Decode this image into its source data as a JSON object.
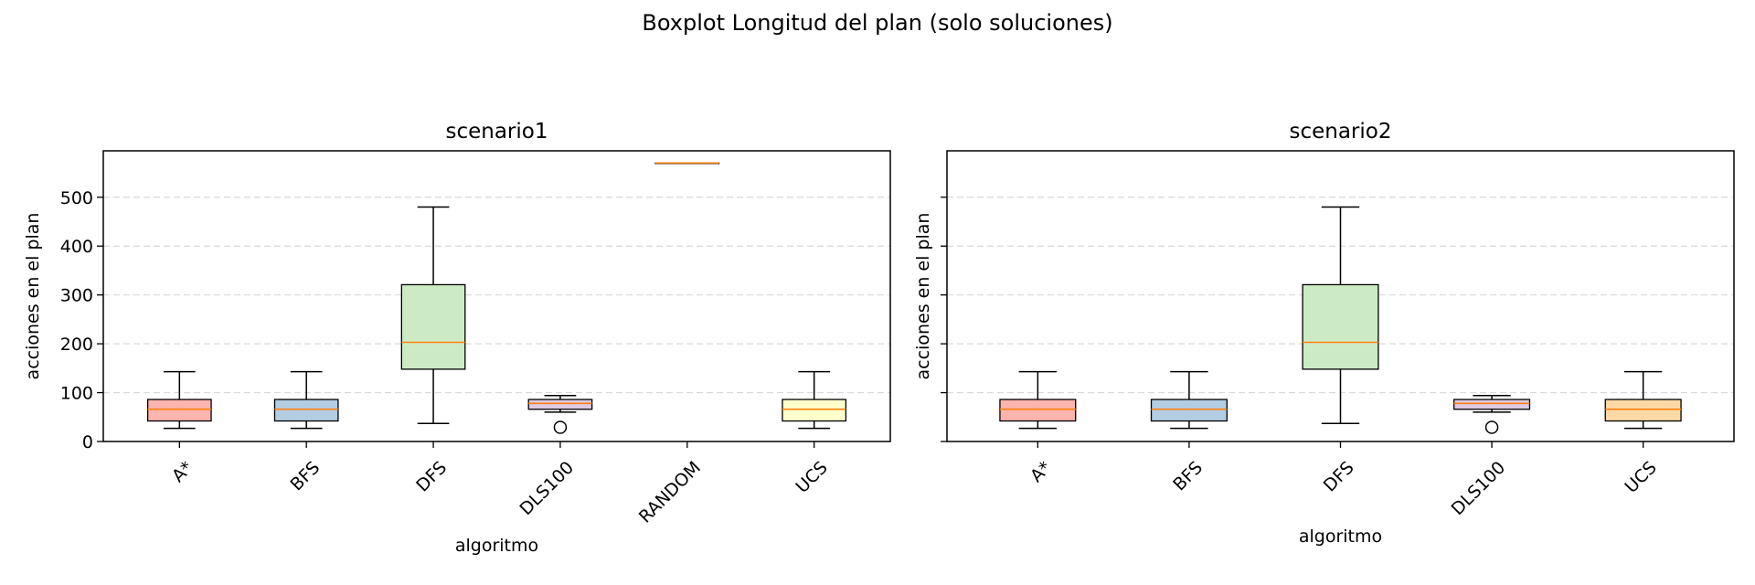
{
  "suptitle": "Boxplot Longitud del plan (solo soluciones)",
  "chart_data": [
    {
      "type": "boxplot",
      "title": "scenario1",
      "xlabel": "algoritmo",
      "ylabel": "acciones en el plan",
      "ylim": [
        0,
        595
      ],
      "yticks": [
        0,
        100,
        200,
        300,
        400,
        500
      ],
      "grid": "y-dashed",
      "categories": [
        "A*",
        "BFS",
        "DFS",
        "DLS100",
        "RANDOM",
        "UCS"
      ],
      "boxes": [
        {
          "name": "A*",
          "whislo": 27,
          "q1": 42,
          "med": 66,
          "q3": 86,
          "whishi": 143,
          "fliers": [],
          "color": "#fbb4ae"
        },
        {
          "name": "BFS",
          "whislo": 27,
          "q1": 42,
          "med": 66,
          "q3": 86,
          "whishi": 143,
          "fliers": [],
          "color": "#b3cde3"
        },
        {
          "name": "DFS",
          "whislo": 37,
          "q1": 148,
          "med": 203,
          "q3": 321,
          "whishi": 480,
          "fliers": [],
          "color": "#ccebc5"
        },
        {
          "name": "DLS100",
          "whislo": 60,
          "q1": 66,
          "med": 78,
          "q3": 86,
          "whishi": 94,
          "fliers": [
            29
          ],
          "color": "#decbe4"
        },
        {
          "name": "RANDOM",
          "whislo": 570,
          "q1": 570,
          "med": 570,
          "q3": 570,
          "whishi": 570,
          "fliers": [],
          "color": "#fed9a6"
        },
        {
          "name": "UCS",
          "whislo": 27,
          "q1": 42,
          "med": 66,
          "q3": 86,
          "whishi": 143,
          "fliers": [],
          "color": "#ffffcc"
        }
      ]
    },
    {
      "type": "boxplot",
      "title": "scenario2",
      "xlabel": "algoritmo",
      "ylabel": "acciones en el plan",
      "ylim": [
        0,
        595
      ],
      "yticks": [
        0,
        100,
        200,
        300,
        400,
        500
      ],
      "grid": "y-dashed",
      "categories": [
        "A*",
        "BFS",
        "DFS",
        "DLS100",
        "UCS"
      ],
      "boxes": [
        {
          "name": "A*",
          "whislo": 27,
          "q1": 42,
          "med": 66,
          "q3": 86,
          "whishi": 143,
          "fliers": [],
          "color": "#fbb4ae"
        },
        {
          "name": "BFS",
          "whislo": 27,
          "q1": 42,
          "med": 66,
          "q3": 86,
          "whishi": 143,
          "fliers": [],
          "color": "#b3cde3"
        },
        {
          "name": "DFS",
          "whislo": 37,
          "q1": 148,
          "med": 203,
          "q3": 321,
          "whishi": 480,
          "fliers": [],
          "color": "#ccebc5"
        },
        {
          "name": "DLS100",
          "whislo": 60,
          "q1": 66,
          "med": 78,
          "q3": 86,
          "whishi": 94,
          "fliers": [
            29
          ],
          "color": "#decbe4"
        },
        {
          "name": "UCS",
          "whislo": 27,
          "q1": 42,
          "med": 66,
          "q3": 86,
          "whishi": 143,
          "fliers": [],
          "color": "#fed9a6"
        }
      ]
    }
  ],
  "colors": {
    "median": "#ff7f0e",
    "grid": "#d9d9d9",
    "edge": "#000000"
  }
}
